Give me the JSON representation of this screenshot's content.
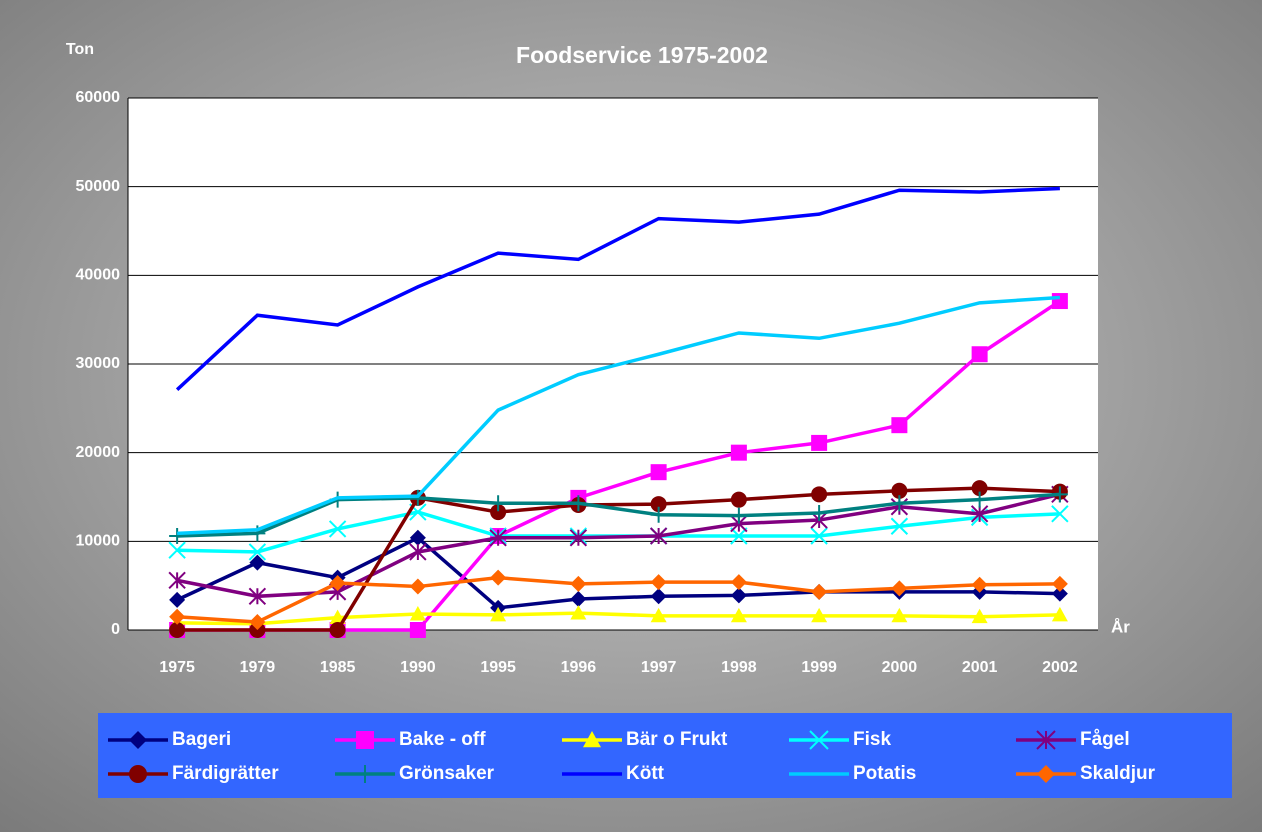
{
  "chart_data": {
    "type": "line",
    "title": "Foodservice 1975-2002",
    "y_label": "Ton",
    "x_label": "År",
    "categories": [
      "1975",
      "1979",
      "1985",
      "1990",
      "1995",
      "1996",
      "1997",
      "1998",
      "1999",
      "2000",
      "2001",
      "2002"
    ],
    "ylim": [
      0,
      60000
    ],
    "yticks": [
      0,
      10000,
      20000,
      30000,
      40000,
      50000,
      60000
    ],
    "grid": true,
    "series": [
      {
        "name": "Bageri",
        "color": "#000080",
        "marker": "diamond",
        "values": [
          3400,
          7600,
          5900,
          10400,
          2500,
          3500,
          3800,
          3900,
          4300,
          4300,
          4300,
          4100
        ]
      },
      {
        "name": "Bake - off",
        "color": "#ff00ff",
        "marker": "square",
        "values": [
          0,
          0,
          0,
          0,
          10600,
          14900,
          17800,
          20000,
          21100,
          23100,
          31100,
          37100
        ]
      },
      {
        "name": "Bär o Frukt",
        "color": "#ffff00",
        "marker": "triangle",
        "values": [
          800,
          700,
          1400,
          1800,
          1700,
          1900,
          1600,
          1600,
          1600,
          1600,
          1500,
          1700
        ]
      },
      {
        "name": "Fisk",
        "color": "#00ffff",
        "marker": "x",
        "values": [
          9000,
          8800,
          11400,
          13300,
          10600,
          10600,
          10600,
          10600,
          10600,
          11700,
          12700,
          13100
        ]
      },
      {
        "name": "Fågel",
        "color": "#800080",
        "marker": "star",
        "values": [
          5600,
          3800,
          4300,
          8800,
          10400,
          10400,
          10600,
          12000,
          12400,
          13900,
          13100,
          15300
        ]
      },
      {
        "name": "Färdigrätter",
        "color": "#800000",
        "marker": "circle",
        "values": [
          0,
          0,
          0,
          14900,
          13300,
          14100,
          14200,
          14700,
          15300,
          15700,
          16000,
          15600
        ]
      },
      {
        "name": "Grönsaker",
        "color": "#008080",
        "marker": "plus",
        "values": [
          10600,
          10900,
          14700,
          14900,
          14300,
          14300,
          13000,
          12900,
          13200,
          14300,
          14700,
          15300
        ]
      },
      {
        "name": "Kött",
        "color": "#0000ff",
        "marker": "none",
        "values": [
          27100,
          35500,
          34400,
          38700,
          42500,
          41800,
          46400,
          46000,
          46900,
          49600,
          49400,
          49800
        ]
      },
      {
        "name": "Potatis",
        "color": "#00ccff",
        "marker": "none",
        "values": [
          10900,
          11300,
          14900,
          15100,
          24800,
          28800,
          31100,
          33500,
          32900,
          34600,
          36900,
          37500
        ]
      },
      {
        "name": "Skaldjur",
        "color": "#ff6600",
        "marker": "diamond",
        "values": [
          1500,
          900,
          5300,
          4900,
          5900,
          5200,
          5400,
          5400,
          4300,
          4700,
          5100,
          5200
        ]
      }
    ]
  }
}
